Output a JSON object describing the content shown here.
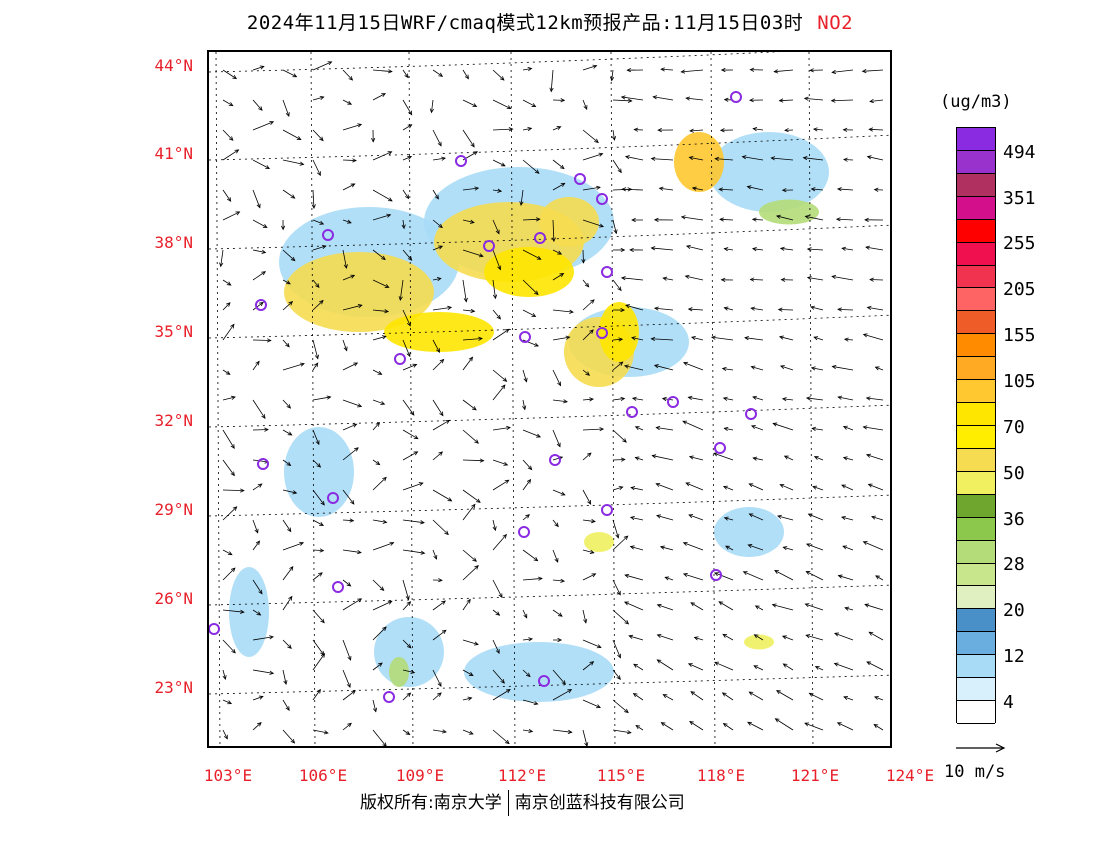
{
  "title": {
    "main": "2024年11月15日WRF/cmaq模式12km预报产品:11月15日03时",
    "species": "NO2"
  },
  "axes": {
    "lat_labels": [
      "44°N",
      "41°N",
      "38°N",
      "35°N",
      "32°N",
      "29°N",
      "26°N",
      "23°N"
    ],
    "lon_labels": [
      "103°E",
      "106°E",
      "109°E",
      "112°E",
      "115°E",
      "118°E",
      "121°E",
      "124°E"
    ]
  },
  "legend": {
    "units": "(ug/m3)",
    "colors": [
      "#8a2be2",
      "#9932cc",
      "#b03060",
      "#d40f8c",
      "#ff0000",
      "#f0104f",
      "#f2334f",
      "#ff6464",
      "#f05c28",
      "#ff8c00",
      "#ffaa22",
      "#ffc830",
      "#ffe600",
      "#ffee00",
      "#f5dc50",
      "#f0f060",
      "#6ea62e",
      "#8cc84b",
      "#b4dc78",
      "#c8e68c",
      "#e0f0c0",
      "#4a90c8",
      "#6aaee0",
      "#a8dcf6",
      "#d8f0fc",
      "#ffffff"
    ],
    "labels": [
      "494",
      "351",
      "255",
      "205",
      "155",
      "105",
      "70",
      "50",
      "36",
      "28",
      "20",
      "12",
      "4"
    ],
    "wind_scale": "10 m/s"
  },
  "footer": {
    "copyright": "版权所有:南京大学",
    "company": "南京创蓝科技有限公司"
  }
}
